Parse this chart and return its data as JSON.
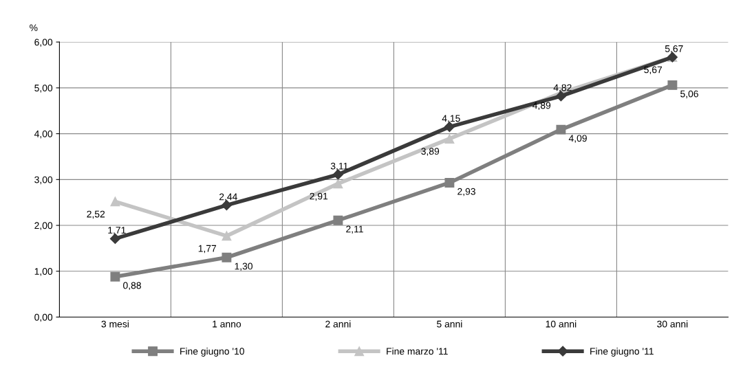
{
  "chart_data": {
    "type": "line",
    "ylabel": "%",
    "categories": [
      "3 mesi",
      "1 anno",
      "2 anni",
      "5 anni",
      "10 anni",
      "30 anni"
    ],
    "series": [
      {
        "name": "Fine giugno '10",
        "color": "#7f7f7f",
        "marker": "square",
        "values": [
          0.88,
          1.3,
          2.11,
          2.93,
          4.09,
          5.06
        ],
        "value_labels": [
          "0,88",
          "1,30",
          "2,11",
          "2,93",
          "4,09",
          "5,06"
        ]
      },
      {
        "name": "Fine marzo '11",
        "color": "#c4c4c4",
        "marker": "triangle",
        "values": [
          2.52,
          1.77,
          2.91,
          3.89,
          4.89,
          5.67
        ],
        "value_labels": [
          "2,52",
          "1,77",
          "2,91",
          "3,89",
          "4,89",
          "5,67"
        ]
      },
      {
        "name": "Fine giugno '11",
        "color": "#3a3a3a",
        "marker": "diamond",
        "values": [
          1.71,
          2.44,
          3.11,
          4.15,
          4.82,
          5.67
        ],
        "value_labels": [
          "1,71",
          "2,44",
          "3,11",
          "4,15",
          "4,82",
          "5,67"
        ]
      }
    ],
    "ylim": [
      0,
      6
    ],
    "yticks": [
      {
        "value": 0,
        "label": "0,00"
      },
      {
        "value": 1,
        "label": "1,00"
      },
      {
        "value": 2,
        "label": "2,00"
      },
      {
        "value": 3,
        "label": "3,00"
      },
      {
        "value": 4,
        "label": "4,00"
      },
      {
        "value": 5,
        "label": "5,00"
      },
      {
        "value": 6,
        "label": "6,00"
      }
    ],
    "grid": true,
    "legend": "bottom",
    "line_style": "solid"
  }
}
